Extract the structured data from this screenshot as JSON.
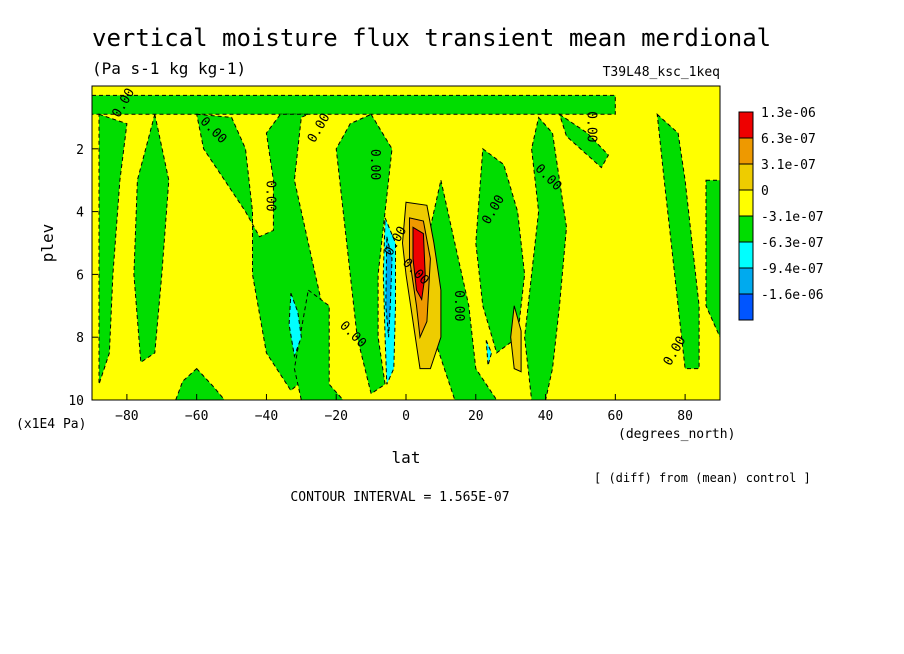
{
  "chart_data": {
    "type": "heatmap",
    "title": "vertical moisture flux transient mean merdional",
    "subtitle": "(Pa s-1 kg kg-1)",
    "run_label": "T39L48_ksc_1keq",
    "xlabel": "lat",
    "x_units": "(degrees_north)",
    "ylabel": "plev",
    "y_units": "(x1E4 Pa)",
    "xlim": [
      -90,
      90
    ],
    "ylim": [
      10,
      0
    ],
    "x_ticks": [
      -80,
      -60,
      -40,
      -20,
      0,
      20,
      40,
      60,
      80
    ],
    "y_ticks": [
      2,
      4,
      6,
      8,
      10
    ],
    "contour_interval_text": "CONTOUR INTERVAL = 1.565E-07",
    "comparison_text": "[ (diff) from (mean) control ]",
    "legend": {
      "placement": "right",
      "levels": [
        {
          "label": "1.3e-06",
          "color": "#ee0000"
        },
        {
          "label": "6.3e-07",
          "color": "#ee9900"
        },
        {
          "label": "3.1e-07",
          "color": "#eecc00"
        },
        {
          "label": "0",
          "color": "#ffff00"
        },
        {
          "label": "-3.1e-07",
          "color": "#00dd00"
        },
        {
          "label": "-6.3e-07",
          "color": "#00ffff"
        },
        {
          "label": "-9.4e-07",
          "color": "#00aaee"
        },
        {
          "label": "-1.6e-06",
          "color": "#0055ff"
        }
      ]
    },
    "background_color": "#ffff00",
    "contour_label": "0.00",
    "regions": [
      {
        "level": "-3.1e-07",
        "points": [
          [
            -90,
            0.3
          ],
          [
            60,
            0.3
          ],
          [
            60,
            0.9
          ],
          [
            -90,
            0.9
          ]
        ]
      },
      {
        "level": "-3.1e-07",
        "points": [
          [
            -72,
            0.9
          ],
          [
            -68,
            3
          ],
          [
            -70,
            6
          ],
          [
            -72,
            8.5
          ],
          [
            -76,
            8.8
          ],
          [
            -78,
            6
          ],
          [
            -77,
            3
          ]
        ]
      },
      {
        "level": "-3.1e-07",
        "points": [
          [
            -60,
            0.9
          ],
          [
            -50,
            1
          ],
          [
            -46,
            2
          ],
          [
            -44,
            4
          ],
          [
            -44,
            6
          ],
          [
            -40,
            8.5
          ],
          [
            -33,
            9.7
          ],
          [
            -26,
            9
          ],
          [
            -24,
            7
          ],
          [
            -28,
            5
          ],
          [
            -32,
            3
          ],
          [
            -30,
            1
          ],
          [
            -28,
            0.9
          ],
          [
            -36,
            0.9
          ],
          [
            -40,
            1.5
          ],
          [
            -38,
            3
          ],
          [
            -38,
            4.6
          ],
          [
            -42,
            4.8
          ],
          [
            -46,
            4
          ],
          [
            -52,
            3
          ],
          [
            -58,
            2
          ]
        ]
      },
      {
        "level": "-3.1e-07",
        "points": [
          [
            -88,
            0.9
          ],
          [
            -80,
            1.2
          ],
          [
            -82,
            3
          ],
          [
            -84,
            6
          ],
          [
            -85,
            8.5
          ],
          [
            -88,
            9.5
          ]
        ]
      },
      {
        "level": "-3.1e-07",
        "points": [
          [
            -60,
            9
          ],
          [
            -55,
            9.6
          ],
          [
            -52,
            10
          ],
          [
            -66,
            10
          ],
          [
            -64,
            9.4
          ]
        ]
      },
      {
        "level": "-3.1e-07",
        "points": [
          [
            -10,
            0.9
          ],
          [
            -4,
            2
          ],
          [
            -6,
            4
          ],
          [
            -8,
            6
          ],
          [
            -8,
            8
          ],
          [
            -6,
            9.5
          ],
          [
            -10,
            9.8
          ],
          [
            -14,
            8
          ],
          [
            -16,
            6
          ],
          [
            -18,
            4
          ],
          [
            -20,
            2
          ],
          [
            -16,
            1.2
          ]
        ]
      },
      {
        "level": "-3.1e-07",
        "points": [
          [
            -28,
            6.5
          ],
          [
            -22,
            7
          ],
          [
            -22,
            9.5
          ],
          [
            -18,
            10
          ],
          [
            -30,
            10
          ],
          [
            -32,
            9
          ]
        ]
      },
      {
        "level": "-3.1e-07",
        "points": [
          [
            10,
            3
          ],
          [
            14,
            5
          ],
          [
            18,
            7
          ],
          [
            20,
            9
          ],
          [
            26,
            10
          ],
          [
            14,
            10
          ],
          [
            8,
            8
          ],
          [
            6,
            5
          ]
        ]
      },
      {
        "level": "-3.1e-07",
        "points": [
          [
            22,
            2
          ],
          [
            28,
            2.5
          ],
          [
            32,
            4
          ],
          [
            34,
            6
          ],
          [
            32,
            8
          ],
          [
            26,
            8.5
          ],
          [
            22,
            7
          ],
          [
            20,
            5
          ]
        ]
      },
      {
        "level": "-3.1e-07",
        "points": [
          [
            38,
            1
          ],
          [
            42,
            1.5
          ],
          [
            44,
            3
          ],
          [
            46,
            4.5
          ],
          [
            44,
            7
          ],
          [
            42,
            9
          ],
          [
            40,
            10
          ],
          [
            36,
            10
          ],
          [
            34,
            8
          ],
          [
            36,
            6
          ],
          [
            38,
            4
          ],
          [
            36,
            2
          ]
        ]
      },
      {
        "level": "-3.1e-07",
        "points": [
          [
            44,
            0.9
          ],
          [
            52,
            1.5
          ],
          [
            58,
            2.2
          ],
          [
            56,
            2.6
          ],
          [
            50,
            2
          ],
          [
            46,
            1.6
          ]
        ]
      },
      {
        "level": "-3.1e-07",
        "points": [
          [
            72,
            0.9
          ],
          [
            78,
            1.5
          ],
          [
            80,
            3
          ],
          [
            82,
            5
          ],
          [
            84,
            7
          ],
          [
            84,
            9
          ],
          [
            80,
            9
          ],
          [
            78,
            7
          ],
          [
            76,
            5
          ],
          [
            74,
            3
          ]
        ]
      },
      {
        "level": "-3.1e-07",
        "points": [
          [
            86,
            3
          ],
          [
            90,
            3
          ],
          [
            90,
            8
          ],
          [
            86,
            7
          ]
        ]
      },
      {
        "level": "-6.3e-07",
        "points": [
          [
            -33,
            6.6
          ],
          [
            -31,
            7.2
          ],
          [
            -30,
            8
          ],
          [
            -32,
            8.6
          ],
          [
            -33.5,
            7.6
          ]
        ]
      },
      {
        "level": "-6.3e-07",
        "points": [
          [
            -6,
            4.2
          ],
          [
            -3,
            5
          ],
          [
            -3,
            7
          ],
          [
            -3.5,
            9
          ],
          [
            -5.5,
            9.5
          ],
          [
            -6,
            8
          ],
          [
            -6.5,
            6
          ]
        ]
      },
      {
        "level": "-6.3e-07",
        "points": [
          [
            23,
            8.1
          ],
          [
            24.5,
            8.5
          ],
          [
            23.5,
            8.9
          ]
        ]
      },
      {
        "level": "-9.4e-07",
        "points": [
          [
            -5.5,
            4.8
          ],
          [
            -4,
            5.5
          ],
          [
            -4.5,
            7
          ],
          [
            -5,
            8
          ],
          [
            -5.8,
            7
          ]
        ]
      },
      {
        "level": "3.1e-07",
        "points": [
          [
            0,
            3.7
          ],
          [
            6,
            3.8
          ],
          [
            8,
            5
          ],
          [
            10,
            6.5
          ],
          [
            10,
            8
          ],
          [
            7,
            9
          ],
          [
            4,
            9
          ],
          [
            2,
            7.5
          ],
          [
            0,
            6
          ],
          [
            -1,
            5
          ]
        ]
      },
      {
        "level": "3.1e-07",
        "points": [
          [
            31,
            7
          ],
          [
            33,
            7.8
          ],
          [
            33,
            9.1
          ],
          [
            31,
            9
          ],
          [
            30,
            8
          ]
        ]
      },
      {
        "level": "6.3e-07",
        "points": [
          [
            1,
            4.2
          ],
          [
            5,
            4.3
          ],
          [
            7,
            5.5
          ],
          [
            6,
            7.5
          ],
          [
            4,
            8
          ],
          [
            3,
            7
          ],
          [
            1,
            5.5
          ]
        ]
      },
      {
        "level": "1.3e-06",
        "points": [
          [
            2,
            4.5
          ],
          [
            5,
            4.7
          ],
          [
            5.5,
            6
          ],
          [
            4.5,
            6.8
          ],
          [
            3,
            6.5
          ],
          [
            2,
            5.5
          ]
        ]
      }
    ]
  }
}
